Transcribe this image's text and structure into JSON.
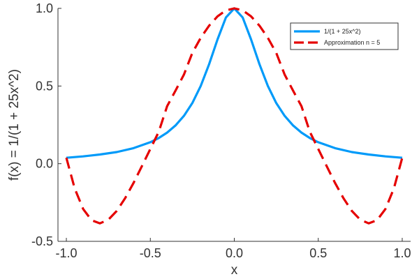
{
  "chart_data": {
    "type": "line",
    "xlabel": "x",
    "ylabel": "f(x) = 1/(1 + 25x^2)",
    "xlim": [
      -1.05,
      1.05
    ],
    "ylim": [
      -0.5,
      1.0
    ],
    "xticks": [
      -1.0,
      -0.5,
      0.0,
      0.5,
      1.0
    ],
    "xtick_labels": [
      "-1.0",
      "-0.5",
      "0.0",
      "0.5",
      "1.0"
    ],
    "yticks": [
      -0.5,
      0.0,
      0.5,
      1.0
    ],
    "ytick_labels": [
      "-0.5",
      "0.0",
      "0.5",
      "1.0"
    ],
    "grid": false,
    "legend_position": "top-right",
    "series": [
      {
        "name": "1/(1 + 25x^2)",
        "color": "#009AF9",
        "style": "solid",
        "x": [
          -1.0,
          -0.9,
          -0.8,
          -0.7,
          -0.6,
          -0.5,
          -0.45,
          -0.4,
          -0.35,
          -0.3,
          -0.25,
          -0.2,
          -0.15,
          -0.1,
          -0.05,
          0.0,
          0.05,
          0.1,
          0.15,
          0.2,
          0.25,
          0.3,
          0.35,
          0.4,
          0.45,
          0.5,
          0.6,
          0.7,
          0.8,
          0.9,
          1.0
        ],
        "y": [
          0.038,
          0.047,
          0.059,
          0.075,
          0.1,
          0.138,
          0.165,
          0.2,
          0.246,
          0.308,
          0.39,
          0.5,
          0.64,
          0.8,
          0.941,
          1.0,
          0.941,
          0.8,
          0.64,
          0.5,
          0.39,
          0.308,
          0.246,
          0.2,
          0.165,
          0.138,
          0.1,
          0.075,
          0.059,
          0.047,
          0.038
        ]
      },
      {
        "name": "Approximation n = 5",
        "color": "#E50000",
        "style": "dashed",
        "x": [
          -1.0,
          -0.95,
          -0.9,
          -0.85,
          -0.8,
          -0.75,
          -0.7,
          -0.65,
          -0.6,
          -0.55,
          -0.5,
          -0.45,
          -0.4,
          -0.35,
          -0.3,
          -0.25,
          -0.2,
          -0.15,
          -0.1,
          -0.05,
          0.0,
          0.05,
          0.1,
          0.15,
          0.2,
          0.25,
          0.3,
          0.35,
          0.4,
          0.45,
          0.5,
          0.55,
          0.6,
          0.65,
          0.7,
          0.75,
          0.8,
          0.85,
          0.9,
          0.95,
          1.0
        ],
        "y": [
          0.038,
          -0.16,
          -0.292,
          -0.364,
          -0.384,
          -0.361,
          -0.304,
          -0.222,
          -0.124,
          -0.016,
          0.095,
          0.205,
          0.37,
          0.47,
          0.574,
          0.713,
          0.81,
          0.888,
          0.949,
          0.987,
          1.0,
          0.987,
          0.949,
          0.888,
          0.81,
          0.713,
          0.574,
          0.47,
          0.37,
          0.205,
          0.095,
          -0.016,
          -0.124,
          -0.222,
          -0.304,
          -0.361,
          -0.384,
          -0.364,
          -0.292,
          -0.16,
          0.038
        ]
      }
    ]
  }
}
